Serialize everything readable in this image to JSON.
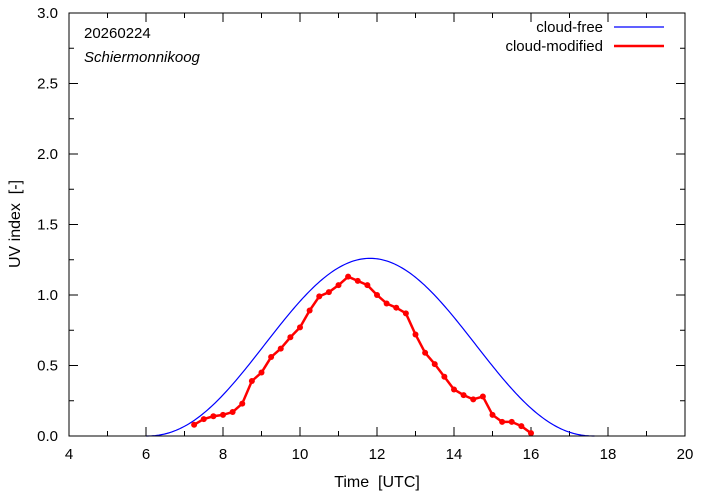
{
  "chart_data": {
    "type": "line",
    "title": "",
    "date_label": "20260224",
    "location_label": "Schiermonnikoog",
    "xlabel": "Time  [UTC]",
    "ylabel": "UV index  [-]",
    "xlim": [
      4,
      20
    ],
    "ylim": [
      0,
      3.0
    ],
    "x_ticks": [
      4,
      6,
      8,
      10,
      12,
      14,
      16,
      18,
      20
    ],
    "x_tick_labels": [
      "4",
      "6",
      "8",
      "10",
      "12",
      "14",
      "16",
      "18",
      "20"
    ],
    "x_minor_step": 1,
    "y_ticks": [
      0,
      0.5,
      1.0,
      1.5,
      2.0,
      2.5,
      3.0
    ],
    "y_tick_labels": [
      "0.0",
      "0.5",
      "1.0",
      "1.5",
      "2.0",
      "2.5",
      "3.0"
    ],
    "y_minor_step": 0.25,
    "grid": false,
    "legend_position": "top-right",
    "series": [
      {
        "name": "cloud-free",
        "color": "#0000ff",
        "style": "line",
        "model": {
          "start": 6.0,
          "end": 17.65,
          "peak_time": 11.82,
          "peak_value": 1.26
        }
      },
      {
        "name": "cloud-modified",
        "color": "#ff0000",
        "style": "linespoints",
        "x": [
          7.25,
          7.5,
          7.75,
          8.0,
          8.25,
          8.5,
          8.75,
          9.0,
          9.25,
          9.5,
          9.75,
          10.0,
          10.25,
          10.5,
          10.75,
          11.0,
          11.25,
          11.5,
          11.75,
          12.0,
          12.25,
          12.5,
          12.75,
          13.0,
          13.25,
          13.5,
          13.75,
          14.0,
          14.25,
          14.5,
          14.75,
          15.0,
          15.25,
          15.5,
          15.75,
          16.0
        ],
        "y": [
          0.08,
          0.12,
          0.14,
          0.15,
          0.17,
          0.23,
          0.39,
          0.45,
          0.56,
          0.62,
          0.7,
          0.77,
          0.89,
          0.99,
          1.02,
          1.07,
          1.13,
          1.1,
          1.07,
          1.0,
          0.94,
          0.91,
          0.87,
          0.72,
          0.59,
          0.51,
          0.42,
          0.33,
          0.29,
          0.26,
          0.28,
          0.15,
          0.1,
          0.1,
          0.07,
          0.02
        ]
      }
    ]
  }
}
